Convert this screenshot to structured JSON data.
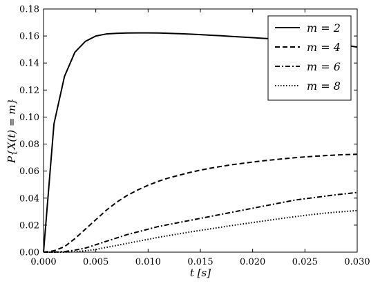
{
  "chart_data": {
    "type": "line",
    "xlabel": "t [s]",
    "ylabel": "P{X(t) = m}",
    "xlim": [
      0.0,
      0.03
    ],
    "ylim": [
      0.0,
      0.18
    ],
    "xticks": [
      "0.000",
      "0.005",
      "0.010",
      "0.015",
      "0.020",
      "0.025",
      "0.030"
    ],
    "yticks": [
      "0.00",
      "0.02",
      "0.04",
      "0.06",
      "0.08",
      "0.10",
      "0.12",
      "0.14",
      "0.16",
      "0.18"
    ],
    "grid": false,
    "legend_position": "top-right",
    "x": [
      0.0,
      0.001,
      0.002,
      0.003,
      0.004,
      0.005,
      0.006,
      0.007,
      0.008,
      0.009,
      0.01,
      0.011,
      0.012,
      0.013,
      0.014,
      0.015,
      0.016,
      0.017,
      0.018,
      0.019,
      0.02,
      0.021,
      0.022,
      0.023,
      0.024,
      0.025,
      0.026,
      0.027,
      0.028,
      0.029,
      0.03
    ],
    "series": [
      {
        "name": "m = 2",
        "style": "solid",
        "values": [
          0.0,
          0.095,
          0.13,
          0.148,
          0.156,
          0.16,
          0.1615,
          0.162,
          0.1622,
          0.1623,
          0.1623,
          0.1622,
          0.162,
          0.1617,
          0.1614,
          0.161,
          0.1606,
          0.1602,
          0.1597,
          0.1592,
          0.1588,
          0.1583,
          0.1578,
          0.1573,
          0.1568,
          0.1562,
          0.1556,
          0.1549,
          0.1542,
          0.153,
          0.1518
        ]
      },
      {
        "name": "m = 4",
        "style": "dashed",
        "values": [
          0.0,
          0.001,
          0.004,
          0.01,
          0.017,
          0.024,
          0.031,
          0.037,
          0.042,
          0.046,
          0.0495,
          0.0525,
          0.055,
          0.057,
          0.059,
          0.0607,
          0.0622,
          0.0635,
          0.0647,
          0.0657,
          0.0667,
          0.0676,
          0.0684,
          0.0692,
          0.0699,
          0.0705,
          0.071,
          0.0715,
          0.0719,
          0.0722,
          0.0725
        ]
      },
      {
        "name": "m = 6",
        "style": "dashdot",
        "values": [
          0.0,
          0.0,
          0.0004,
          0.0015,
          0.003,
          0.0055,
          0.008,
          0.0105,
          0.013,
          0.015,
          0.017,
          0.019,
          0.0205,
          0.022,
          0.0235,
          0.025,
          0.0265,
          0.028,
          0.0295,
          0.031,
          0.0325,
          0.034,
          0.0355,
          0.037,
          0.0385,
          0.0395,
          0.0405,
          0.0415,
          0.0425,
          0.0433,
          0.0442
        ]
      },
      {
        "name": "m = 8",
        "style": "dotted",
        "values": [
          0.0,
          0.0,
          0.0,
          0.0003,
          0.001,
          0.002,
          0.0035,
          0.005,
          0.0065,
          0.008,
          0.0095,
          0.011,
          0.0123,
          0.0136,
          0.0149,
          0.0161,
          0.0173,
          0.0185,
          0.0197,
          0.0208,
          0.0219,
          0.023,
          0.0241,
          0.0252,
          0.0262,
          0.0272,
          0.0281,
          0.0289,
          0.0296,
          0.0302,
          0.0308
        ]
      }
    ]
  }
}
